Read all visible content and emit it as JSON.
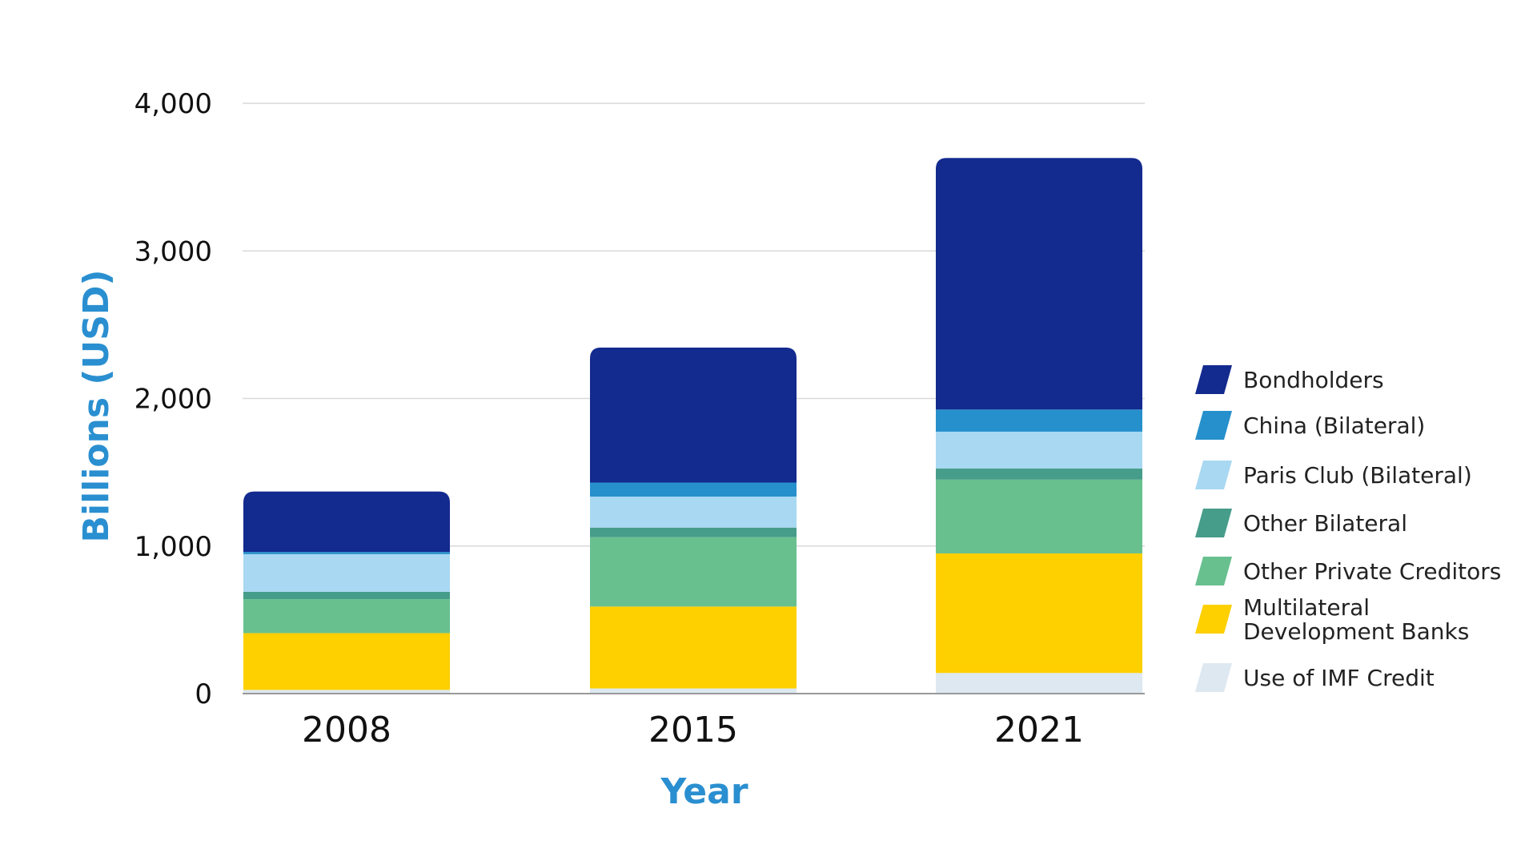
{
  "chart_data": {
    "type": "bar",
    "stacked": true,
    "title": "",
    "xlabel": "Year",
    "ylabel": "Billions (USD)",
    "ylim": [
      0,
      4000
    ],
    "yticks": [
      0,
      1000,
      2000,
      3000,
      4000
    ],
    "ytick_labels": [
      "0",
      "1,000",
      "2,000",
      "3,000",
      "4,000"
    ],
    "grid": true,
    "legend_position": "right",
    "categories": [
      "2008",
      "2015",
      "2021"
    ],
    "series": [
      {
        "name": "Use of IMF Credit",
        "color": "#dde8f1",
        "values": [
          25,
          35,
          140
        ]
      },
      {
        "name": "Multilateral Development Banks",
        "color": "#fed000",
        "values": [
          385,
          555,
          810
        ]
      },
      {
        "name": "Other Private Creditors",
        "color": "#68c08f",
        "values": [
          230,
          470,
          500
        ]
      },
      {
        "name": "Other Bilateral",
        "color": "#469d89",
        "values": [
          50,
          65,
          75
        ]
      },
      {
        "name": "Paris Club (Bilateral)",
        "color": "#a8d8f2",
        "values": [
          255,
          210,
          250
        ]
      },
      {
        "name": "China (Bilateral)",
        "color": "#2690cc",
        "values": [
          15,
          95,
          150
        ]
      },
      {
        "name": "Bondholders",
        "color": "#132a8e",
        "values": [
          410,
          915,
          1705
        ]
      }
    ],
    "legend": [
      {
        "label": "Bondholders",
        "color": "#132a8e"
      },
      {
        "label": "China (Bilateral)",
        "color": "#2690cc"
      },
      {
        "label": "Paris Club (Bilateral)",
        "color": "#a8d8f2"
      },
      {
        "label": "Other Bilateral",
        "color": "#469d89"
      },
      {
        "label": "Other Private Creditors",
        "color": "#68c08f"
      },
      {
        "label": "Multilateral Development Banks",
        "label_lines": [
          "Multilateral",
          "Development Banks"
        ],
        "color": "#fed000"
      },
      {
        "label": "Use of IMF Credit",
        "color": "#dde8f1"
      }
    ],
    "colors": {
      "axis_title": "#2a8fd0",
      "grid": "#d9d9d9",
      "baseline": "#9a9a9a",
      "text": "#111111"
    }
  }
}
